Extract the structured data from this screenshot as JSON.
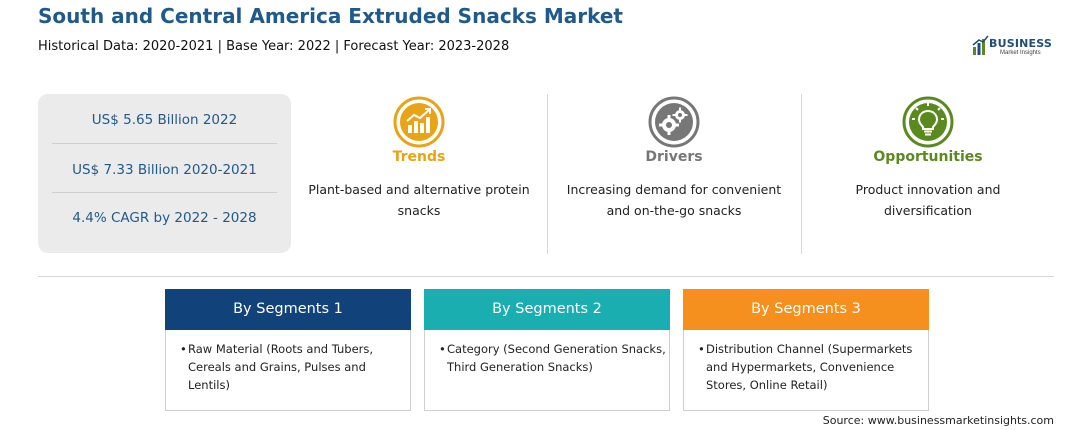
{
  "header": {
    "title": "South and Central America Extruded Snacks Market",
    "subtitle": "Historical Data: 2020-2021 | Base Year: 2022 | Forecast Year: 2023-2028"
  },
  "logo": {
    "name": "BUSINESS",
    "tagline": "Market Insights"
  },
  "stats": [
    "US$ 5.65 Billion 2022",
    "US$ 7.33 Billion 2020-2021",
    "4.4% CAGR by 2022 - 2028"
  ],
  "features": [
    {
      "title": "Trends",
      "description": "Plant-based and alternative protein snacks",
      "color": "#e8a317",
      "icon": "trend-chart-icon"
    },
    {
      "title": "Drivers",
      "description": "Increasing demand for convenient and on-the-go snacks",
      "color": "#777777",
      "icon": "gears-icon"
    },
    {
      "title": "Opportunities",
      "description": "Product innovation and diversification",
      "color": "#5a8a1f",
      "icon": "lightbulb-icon"
    }
  ],
  "segments": [
    {
      "title": "By Segments 1",
      "color": "#12427a",
      "item": "Raw Material (Roots and Tubers, Cereals and Grains, Pulses and Lentils)"
    },
    {
      "title": "By Segments 2",
      "color": "#1aaeb0",
      "item": "Category (Second Generation Snacks, Third Generation Snacks)"
    },
    {
      "title": "By Segments 3",
      "color": "#f5901e",
      "item": "Distribution Channel (Supermarkets and Hypermarkets, Convenience Stores, Online Retail)"
    }
  ],
  "source": "Source: www.businessmarketinsights.com"
}
